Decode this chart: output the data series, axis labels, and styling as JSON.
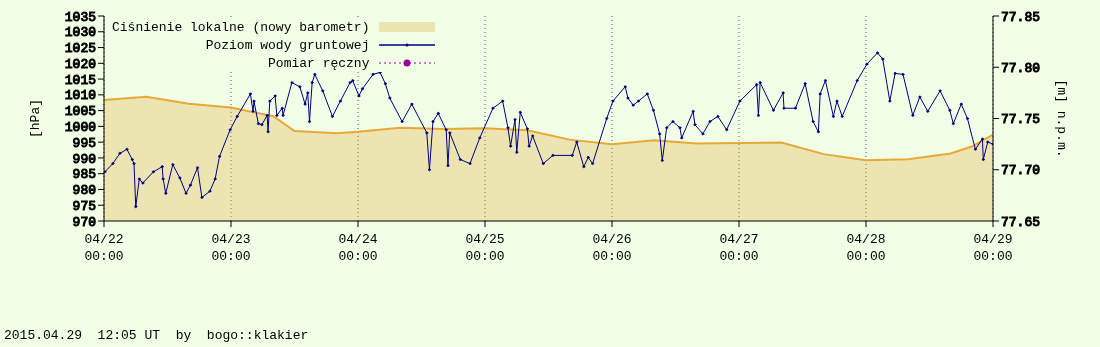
{
  "chart_data": {
    "type": "area",
    "xlabel": null,
    "ylabel": "[hPa]",
    "y2label": "[m] n.p.m.",
    "xlim": [
      "2015-04-22T00:00",
      "2015-04-29T00:00"
    ],
    "xticks": [
      {
        "value": "2015-04-22T00:00",
        "label": "04/22\n00:00"
      },
      {
        "value": "2015-04-23T00:00",
        "label": "04/23\n00:00"
      },
      {
        "value": "2015-04-24T00:00",
        "label": "04/24\n00:00"
      },
      {
        "value": "2015-04-25T00:00",
        "label": "04/25\n00:00"
      },
      {
        "value": "2015-04-26T00:00",
        "label": "04/26\n00:00"
      },
      {
        "value": "2015-04-27T00:00",
        "label": "04/27\n00:00"
      },
      {
        "value": "2015-04-28T00:00",
        "label": "04/28\n00:00"
      },
      {
        "value": "2015-04-29T00:00",
        "label": "04/29\n00:00"
      }
    ],
    "ylim": [
      970,
      1035
    ],
    "yticks": [
      970,
      975,
      980,
      985,
      990,
      995,
      1000,
      1005,
      1010,
      1015,
      1020,
      1025,
      1030,
      1035
    ],
    "y2lim": [
      77.65,
      77.85
    ],
    "y2ticks": [
      77.65,
      {
        "value": 77.7,
        "label": "77.70"
      },
      77.75,
      {
        "value": 77.8,
        "label": "77.80"
      },
      77.85
    ],
    "grid": "x",
    "legend": "top left",
    "series": [
      {
        "name": "Ciśnienie lokalne (nowy barometr)",
        "color": "#e8a838",
        "x": [
          "2015-04-22T00:00",
          "2015-04-22T08:00",
          "2015-04-22T16:00",
          "2015-04-23T00:00",
          "2015-04-23T08:00",
          "2015-04-23T12:00",
          "2015-04-23T20:00",
          "2015-04-24T00:00",
          "2015-04-24T08:00",
          "2015-04-24T16:00",
          "2015-04-25T00:00",
          "2015-04-25T08:00",
          "2015-04-25T16:00",
          "2015-04-26T00:00",
          "2015-04-26T08:00",
          "2015-04-26T16:00",
          "2015-04-27T00:00",
          "2015-04-27T08:00",
          "2015-04-27T16:00",
          "2015-04-28T00:00",
          "2015-04-28T08:00",
          "2015-04-28T16:00",
          "2015-04-28T20:00",
          "2015-04-29T00:00"
        ],
        "values": [
          1008.4,
          1009.4,
          1007.2,
          1006.0,
          1003.2,
          998.5,
          997.8,
          998.3,
          999.6,
          999.2,
          999.4,
          998.8,
          995.8,
          994.3,
          995.6,
          994.6,
          994.7,
          994.9,
          991.2,
          989.3,
          989.6,
          991.4,
          993.6,
          997.4
        ]
      },
      {
        "name": "Poziom wody gruntowej",
        "type": "line",
        "axis": "y2",
        "color": "#000080",
        "marker": "circle",
        "line_style": "solid",
        "x": [
          "2015-04-22T00:10",
          "2015-04-22T01:40",
          "2015-04-22T03:00",
          "2015-04-22T04:20",
          "2015-04-22T05:20",
          "2015-04-22T05:40",
          "2015-04-22T06:00",
          "2015-04-22T06:40",
          "2015-04-22T07:20",
          "2015-04-22T09:20",
          "2015-04-22T11:00",
          "2015-04-22T11:10",
          "2015-04-22T11:40",
          "2015-04-22T13:00",
          "2015-04-22T14:20",
          "2015-04-22T15:30",
          "2015-04-22T16:20",
          "2015-04-22T17:40",
          "2015-04-22T18:30",
          "2015-04-22T20:00",
          "2015-04-22T21:00",
          "2015-04-22T21:50",
          "2015-04-22T23:50",
          "2015-04-23T01:10",
          "2015-04-23T03:40",
          "2015-04-23T04:10",
          "2015-04-23T04:20",
          "2015-04-23T05:10",
          "2015-04-23T05:50",
          "2015-04-23T06:50",
          "2015-04-23T07:00",
          "2015-04-23T07:20",
          "2015-04-23T08:20",
          "2015-04-23T08:40",
          "2015-04-23T09:40",
          "2015-04-23T09:50",
          "2015-04-23T11:30",
          "2015-04-23T13:00",
          "2015-04-23T14:00",
          "2015-04-23T14:30",
          "2015-04-23T14:50",
          "2015-04-23T15:20",
          "2015-04-23T15:50",
          "2015-04-23T17:20",
          "2015-04-23T19:10",
          "2015-04-23T20:40",
          "2015-04-23T22:30",
          "2015-04-23T23:00",
          "2015-04-24T00:10",
          "2015-04-24T00:50",
          "2015-04-24T02:50",
          "2015-04-24T04:10",
          "2015-04-24T05:10",
          "2015-04-24T06:00",
          "2015-04-24T08:20",
          "2015-04-24T10:10",
          "2015-04-24T13:00",
          "2015-04-24T13:30",
          "2015-04-24T14:10",
          "2015-04-24T15:10",
          "2015-04-24T16:40",
          "2015-04-24T17:00",
          "2015-04-24T17:20",
          "2015-04-24T19:20",
          "2015-04-24T21:10",
          "2015-04-24T23:00",
          "2015-04-25T01:30",
          "2015-04-25T03:20",
          "2015-04-25T04:20",
          "2015-04-25T04:50",
          "2015-04-25T05:40",
          "2015-04-25T06:00",
          "2015-04-25T06:40",
          "2015-04-25T08:00",
          "2015-04-25T08:20",
          "2015-04-25T09:00",
          "2015-04-25T11:00",
          "2015-04-25T12:50",
          "2015-04-25T16:30",
          "2015-04-25T17:20",
          "2015-04-25T18:40",
          "2015-04-25T19:30",
          "2015-04-25T20:20",
          "2015-04-25T23:00",
          "2015-04-26T00:10",
          "2015-04-26T02:30",
          "2015-04-26T03:00",
          "2015-04-26T04:00",
          "2015-04-26T05:00",
          "2015-04-26T06:40",
          "2015-04-26T07:50",
          "2015-04-26T09:00",
          "2015-04-26T09:30",
          "2015-04-26T10:20",
          "2015-04-26T11:30",
          "2015-04-26T12:50",
          "2015-04-26T13:10",
          "2015-04-26T15:20",
          "2015-04-26T15:40",
          "2015-04-26T17:10",
          "2015-04-26T18:30",
          "2015-04-26T20:00",
          "2015-04-26T21:40",
          "2015-04-27T00:10",
          "2015-04-27T03:20",
          "2015-04-27T03:40",
          "2015-04-27T04:00",
          "2015-04-27T06:30",
          "2015-04-27T08:20",
          "2015-04-27T08:30",
          "2015-04-27T10:40",
          "2015-04-27T12:30",
          "2015-04-27T14:00",
          "2015-04-27T15:00",
          "2015-04-27T15:20",
          "2015-04-27T16:20",
          "2015-04-27T17:50",
          "2015-04-27T18:30",
          "2015-04-27T19:30",
          "2015-04-27T22:20",
          "2015-04-28T00:10",
          "2015-04-28T02:10",
          "2015-04-28T03:10",
          "2015-04-28T04:30",
          "2015-04-28T05:30",
          "2015-04-28T07:00",
          "2015-04-28T08:50",
          "2015-04-28T10:10",
          "2015-04-28T11:40",
          "2015-04-28T14:00",
          "2015-04-28T15:50",
          "2015-04-28T16:30",
          "2015-04-28T18:00",
          "2015-04-28T19:10",
          "2015-04-28T20:40",
          "2015-04-28T22:00",
          "2015-04-28T22:10",
          "2015-04-28T23:00",
          "2015-04-29T00:00"
        ],
        "values": [
          77.698,
          77.706,
          77.716,
          77.72,
          77.71,
          77.706,
          77.664,
          77.691,
          77.687,
          77.698,
          77.703,
          77.691,
          77.677,
          77.705,
          77.692,
          77.677,
          77.685,
          77.702,
          77.673,
          77.679,
          77.691,
          77.713,
          77.739,
          77.752,
          77.774,
          77.757,
          77.767,
          77.745,
          77.744,
          77.753,
          77.737,
          77.767,
          77.772,
          77.753,
          77.76,
          77.753,
          77.785,
          77.781,
          77.764,
          77.775,
          77.747,
          77.785,
          77.793,
          77.777,
          77.752,
          77.767,
          77.785,
          77.787,
          77.772,
          77.779,
          77.793,
          77.795,
          77.784,
          77.77,
          77.747,
          77.764,
          77.736,
          77.7,
          77.747,
          77.755,
          77.739,
          77.704,
          77.736,
          77.71,
          77.706,
          77.731,
          77.76,
          77.767,
          77.741,
          77.723,
          77.749,
          77.717,
          77.756,
          77.74,
          77.723,
          77.733,
          77.706,
          77.714,
          77.714,
          77.727,
          77.703,
          77.712,
          77.706,
          77.75,
          77.767,
          77.781,
          77.77,
          77.763,
          77.767,
          77.774,
          77.758,
          77.735,
          77.709,
          77.741,
          77.747,
          77.741,
          77.731,
          77.757,
          77.744,
          77.735,
          77.747,
          77.752,
          77.739,
          77.767,
          77.783,
          77.753,
          77.785,
          77.758,
          77.775,
          77.76,
          77.76,
          77.784,
          77.747,
          77.737,
          77.774,
          77.787,
          77.752,
          77.767,
          77.752,
          77.787,
          77.803,
          77.814,
          77.808,
          77.767,
          77.794,
          77.793,
          77.753,
          77.771,
          77.757,
          77.777,
          77.758,
          77.745,
          77.764,
          77.75,
          77.72,
          77.73,
          77.71,
          77.727,
          77.725
        ]
      },
      {
        "name": "Pomiar ręczny",
        "type": "line",
        "axis": "y2",
        "color": "#990099",
        "marker": "circle",
        "line_style": "dotted"
      }
    ],
    "annotations": [
      "2015.04.29  12:05 UT  by  bogo::klakier"
    ]
  }
}
